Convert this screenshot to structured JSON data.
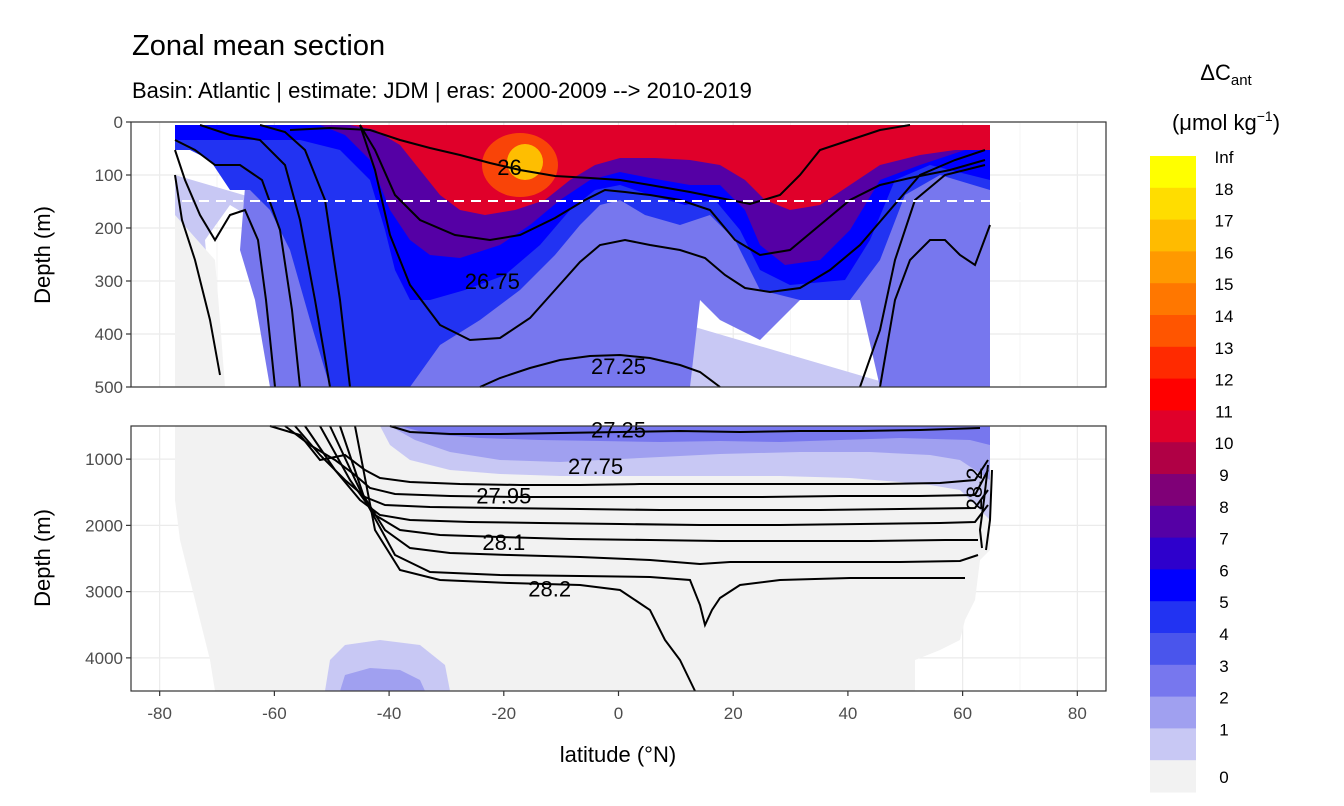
{
  "title": "Zonal mean section",
  "subtitle": "Basin: Atlantic | estimate: JDM  | eras: 2000-2009 --> 2010-2019",
  "chart_data": {
    "type": "contour",
    "xlabel": "latitude (°N)",
    "ylabel": "Depth (m)",
    "xlim": [
      -85,
      85
    ],
    "x_ticks": [
      "-80",
      "-60",
      "-40",
      "-20",
      "0",
      "20",
      "40",
      "60",
      "80"
    ],
    "x_tick_values": [
      -80,
      -60,
      -40,
      -20,
      0,
      20,
      40,
      60,
      80
    ],
    "panels": [
      {
        "name": "upper",
        "ylim": [
          0,
          500
        ],
        "y_ticks": [
          "0",
          "100",
          "200",
          "300",
          "400",
          "500"
        ],
        "y_tick_values": [
          0,
          100,
          200,
          300,
          400,
          500
        ],
        "reference_line_depth": 150
      },
      {
        "name": "lower",
        "ylim": [
          500,
          4500
        ],
        "y_ticks": [
          "1000",
          "2000",
          "3000",
          "4000"
        ],
        "y_tick_values": [
          1000,
          2000,
          3000,
          4000
        ]
      }
    ],
    "contour_labels": [
      {
        "text": "26",
        "x": -19,
        "depth": 85,
        "panel": "upper"
      },
      {
        "text": "26.75",
        "x": -22,
        "depth": 300,
        "panel": "upper"
      },
      {
        "text": "27.25",
        "x": 0,
        "depth": 460,
        "panel": "upper"
      },
      {
        "text": "27.25",
        "x": 0,
        "depth": 550,
        "panel": "lower"
      },
      {
        "text": "27.75",
        "x": -4,
        "depth": 1100,
        "panel": "lower"
      },
      {
        "text": "27.95",
        "x": -20,
        "depth": 1550,
        "panel": "lower"
      },
      {
        "text": "28.1",
        "x": -20,
        "depth": 2250,
        "panel": "lower"
      },
      {
        "text": "28.2",
        "x": -12,
        "depth": 2950,
        "panel": "lower"
      },
      {
        "text": "28.2",
        "x": 62,
        "depth": 1450,
        "panel": "lower"
      }
    ],
    "legend": {
      "title": "ΔC",
      "title_sub": "ant",
      "unit": "(μmol kg",
      "unit_sup": "−1",
      "unit_close": ")",
      "labels": [
        "Inf",
        "18",
        "17",
        "16",
        "15",
        "14",
        "13",
        "12",
        "11",
        "10",
        "9",
        "8",
        "7",
        "6",
        "5",
        "4",
        "3",
        "2",
        "1",
        "0"
      ],
      "colors": [
        "#ffff00",
        "#ffdd00",
        "#ffbb00",
        "#ff9900",
        "#ff7700",
        "#ff5500",
        "#ff2a00",
        "#ff0000",
        "#e0002a",
        "#b00045",
        "#7f0077",
        "#5500a5",
        "#2e00cc",
        "#0000ff",
        "#2233f2",
        "#4a55ec",
        "#7777ee",
        "#a0a0f0",
        "#c8c8f4",
        "#f2f2f2"
      ]
    }
  }
}
